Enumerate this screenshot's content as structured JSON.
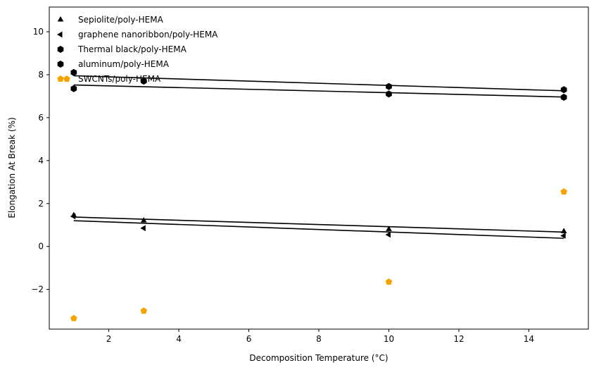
{
  "chart_data": {
    "type": "scatter",
    "title": "",
    "xlabel": "Decomposition Temperature (°C)",
    "ylabel": "Elongation At Break (%)",
    "xlim": [
      0.3,
      15.7
    ],
    "ylim": [
      -3.85,
      11.15
    ],
    "xticks": [
      2,
      4,
      6,
      8,
      10,
      12,
      14
    ],
    "yticks": [
      -2,
      0,
      2,
      4,
      6,
      8,
      10
    ],
    "grid": false,
    "legend_position": "top-left",
    "series": [
      {
        "name": "Sepiolite/poly-HEMA",
        "marker": "triangle-up",
        "color": "#000000",
        "points": [
          [
            1,
            1.45
          ],
          [
            3,
            1.2
          ],
          [
            10,
            0.8
          ],
          [
            15,
            0.7
          ]
        ],
        "fit_line": [
          [
            1,
            1.37
          ],
          [
            15,
            0.67
          ]
        ]
      },
      {
        "name": "graphene nanoribbon/poly-HEMA",
        "marker": "triangle-left",
        "color": "#000000",
        "points": [
          [
            1,
            1.4
          ],
          [
            3,
            0.85
          ],
          [
            10,
            0.55
          ],
          [
            15,
            0.5
          ]
        ],
        "fit_line": [
          [
            1,
            1.2
          ],
          [
            15,
            0.38
          ]
        ]
      },
      {
        "name": "Thermal black/poly-HEMA",
        "marker": "hexagon",
        "color": "#000000",
        "points": [
          [
            1,
            8.1
          ],
          [
            3,
            7.7
          ],
          [
            10,
            7.45
          ],
          [
            15,
            7.3
          ]
        ],
        "fit_line": [
          [
            1,
            7.95
          ],
          [
            15,
            7.25
          ]
        ]
      },
      {
        "name": "aluminum/poly-HEMA",
        "marker": "hexagon",
        "color": "#000000",
        "points": [
          [
            1,
            7.35
          ],
          [
            10,
            7.1
          ],
          [
            15,
            6.95
          ]
        ],
        "fit_line": [
          [
            1,
            7.52
          ],
          [
            15,
            6.96
          ]
        ]
      },
      {
        "name": "SWCNTs/poly-HEMA",
        "marker": "pentagon",
        "color": "#f5a300",
        "points": [
          [
            0.8,
            7.8
          ],
          [
            1,
            -3.35
          ],
          [
            3,
            -3.0
          ],
          [
            10,
            -1.65
          ],
          [
            15,
            2.55
          ]
        ],
        "fit_line": []
      }
    ]
  }
}
